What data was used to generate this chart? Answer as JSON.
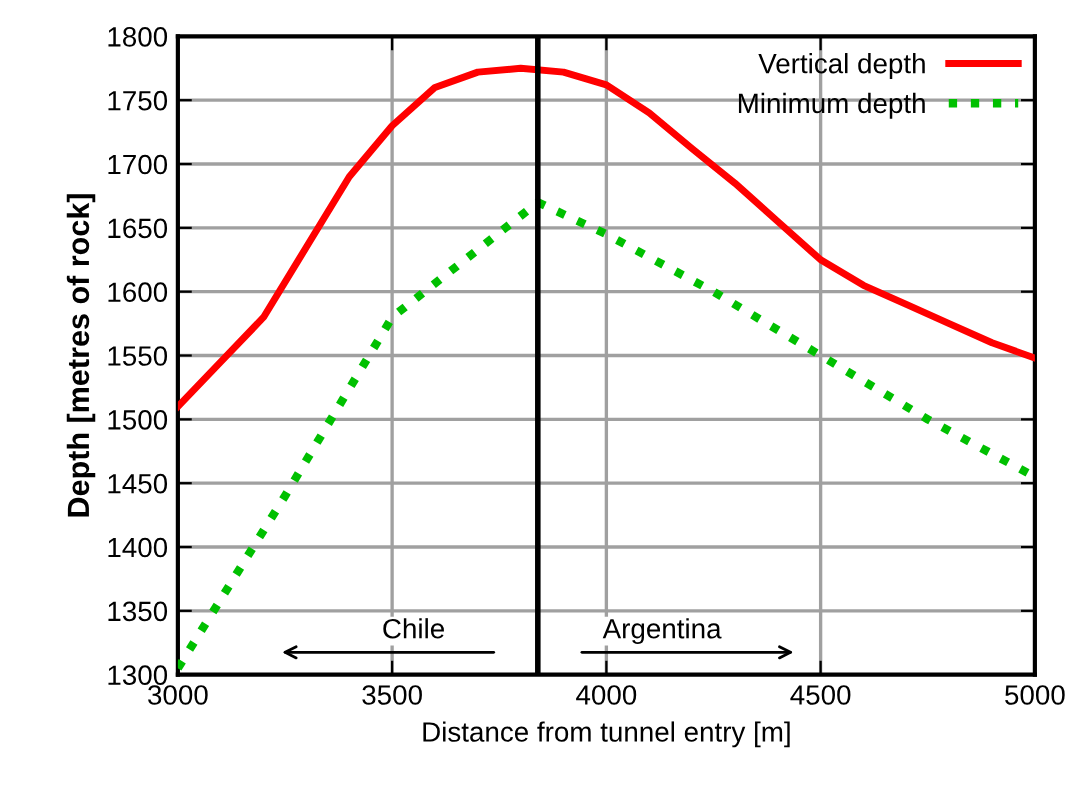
{
  "chart_data": {
    "type": "line",
    "xlabel": "Distance from tunnel entry [m]",
    "ylabel": "Depth [metres of rock]",
    "x": [
      3000,
      3100,
      3200,
      3300,
      3400,
      3500,
      3600,
      3700,
      3800,
      3900,
      4000,
      4100,
      4200,
      4300,
      4400,
      4500,
      4600,
      4700,
      4800,
      4900,
      5000
    ],
    "series": [
      {
        "name": "Vertical depth",
        "color": "#ff0000",
        "line_style": "solid",
        "values": [
          1510,
          1545,
          1580,
          1635,
          1690,
          1730,
          1760,
          1772,
          1775,
          1772,
          1762,
          1740,
          1712,
          1685,
          1655,
          1625,
          1605,
          1590,
          1575,
          1560,
          1548
        ]
      },
      {
        "name": "Minimum depth",
        "color": "#00c000",
        "line_style": "dotted",
        "x": [
          3000,
          3250,
          3500,
          3840,
          4000,
          4250,
          4500,
          4750,
          5000
        ],
        "values": [
          1305,
          1440,
          1580,
          1670,
          1645,
          1600,
          1550,
          1500,
          1455
        ]
      }
    ],
    "xlim": [
      3000,
      5000
    ],
    "xticks": [
      3000,
      3500,
      4000,
      4500,
      5000
    ],
    "ylim": [
      1300,
      1800
    ],
    "yticks": [
      1300,
      1350,
      1400,
      1450,
      1500,
      1550,
      1600,
      1650,
      1700,
      1750,
      1800
    ],
    "ref_lines": [
      {
        "axis": "x",
        "value": 3840,
        "color": "#000000"
      }
    ],
    "annotations": [
      "Chile",
      "Argentina"
    ],
    "grid": true,
    "legend": "top right",
    "marker": "none"
  }
}
